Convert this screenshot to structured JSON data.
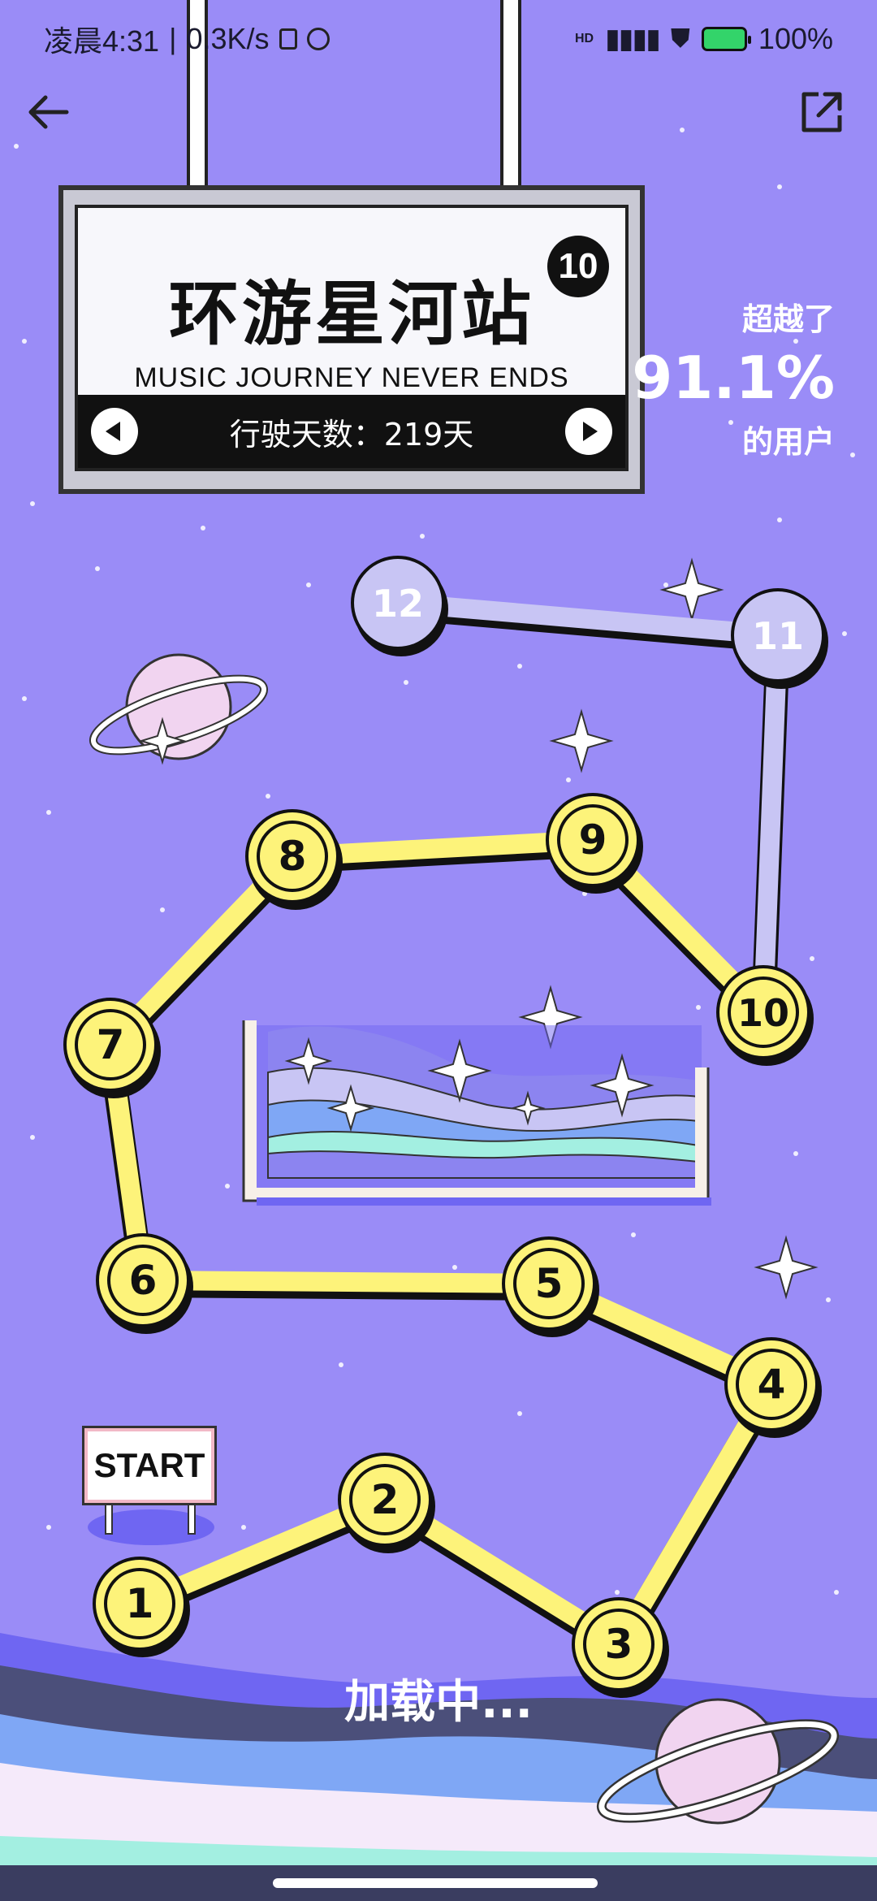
{
  "status_bar": {
    "time": "凌晨4:31",
    "speed": "0.3K/s",
    "battery": "100%",
    "signal_label": "HD"
  },
  "nav": {
    "back_icon": "arrow-left-icon",
    "share_icon": "share-external-icon"
  },
  "sign": {
    "badge": "10",
    "title": "环游星河站",
    "subtitle": "MUSIC JOURNEY NEVER ENDS",
    "days_text": "行驶天数：219天"
  },
  "beyond": {
    "line1": "超越了",
    "percent": "91.1%",
    "line2": "的用户"
  },
  "journey": {
    "nodes": [
      {
        "label": "1",
        "state": "active"
      },
      {
        "label": "2",
        "state": "active"
      },
      {
        "label": "3",
        "state": "active"
      },
      {
        "label": "4",
        "state": "active"
      },
      {
        "label": "5",
        "state": "active"
      },
      {
        "label": "6",
        "state": "active"
      },
      {
        "label": "7",
        "state": "active"
      },
      {
        "label": "8",
        "state": "active"
      },
      {
        "label": "9",
        "state": "active"
      },
      {
        "label": "10",
        "state": "active"
      },
      {
        "label": "11",
        "state": "locked"
      },
      {
        "label": "12",
        "state": "locked"
      }
    ],
    "start_label": "START"
  },
  "loading_text": "加载中...",
  "colors": {
    "background": "#9a8cf7",
    "node_active": "#fdf37a",
    "node_locked": "#c8c5f4",
    "path_active": "#fdf37a",
    "path_locked": "#c8c5f4",
    "wave_dark": "#4b4f7a",
    "wave_blue": "#7fa7f5",
    "wave_light": "#f5eafa"
  }
}
